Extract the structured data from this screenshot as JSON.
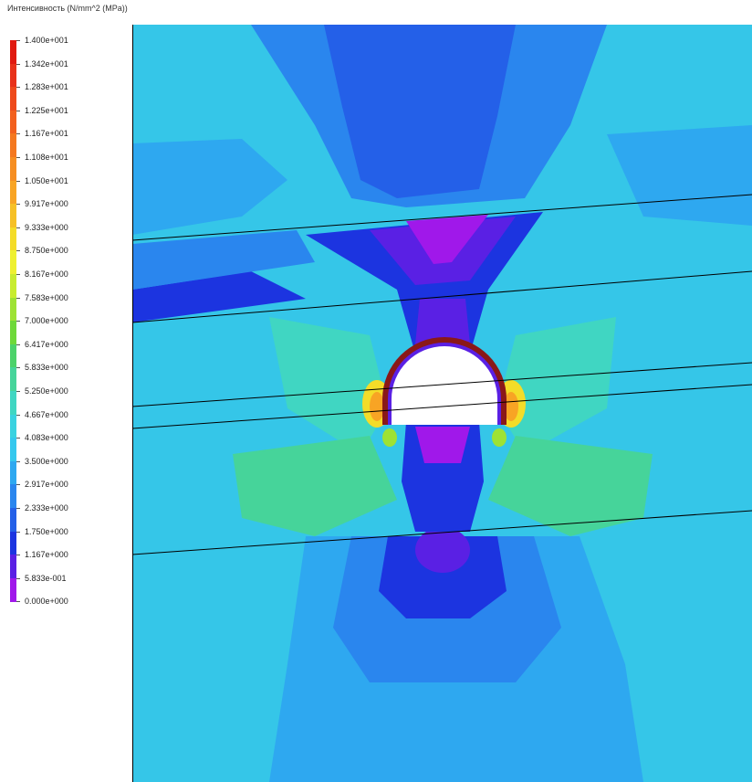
{
  "legend": {
    "title": "Интенсивность (N/mm^2 (MPa))",
    "entries": [
      {
        "label": "1.400e+001",
        "color": "#e01a10"
      },
      {
        "label": "1.342e+001",
        "color": "#e8321a"
      },
      {
        "label": "1.283e+001",
        "color": "#ee4a1c"
      },
      {
        "label": "1.225e+001",
        "color": "#f2601e"
      },
      {
        "label": "1.167e+001",
        "color": "#f47820"
      },
      {
        "label": "1.108e+001",
        "color": "#f68e22"
      },
      {
        "label": "1.050e+001",
        "color": "#f8a424"
      },
      {
        "label": "9.917e+000",
        "color": "#f6c026"
      },
      {
        "label": "9.333e+000",
        "color": "#f4dc28"
      },
      {
        "label": "8.750e+000",
        "color": "#eef030"
      },
      {
        "label": "8.167e+000",
        "color": "#c8ec30"
      },
      {
        "label": "7.583e+000",
        "color": "#9ee234"
      },
      {
        "label": "7.000e+000",
        "color": "#6ed83a"
      },
      {
        "label": "6.417e+000",
        "color": "#4cd26a"
      },
      {
        "label": "5.833e+000",
        "color": "#46d49a"
      },
      {
        "label": "5.250e+000",
        "color": "#40d6c2"
      },
      {
        "label": "4.667e+000",
        "color": "#3ad2e0"
      },
      {
        "label": "4.083e+000",
        "color": "#34c8ee"
      },
      {
        "label": "3.500e+000",
        "color": "#2ea8f0"
      },
      {
        "label": "2.917e+000",
        "color": "#2a86ee"
      },
      {
        "label": "2.333e+000",
        "color": "#2460e8"
      },
      {
        "label": "1.750e+000",
        "color": "#1c34e0"
      },
      {
        "label": "1.167e+000",
        "color": "#5a20e4"
      },
      {
        "label": "5.833e-001",
        "color": "#a018ea"
      },
      {
        "label": "0.000e+000",
        "color": "#ee10ee"
      }
    ]
  },
  "colors": {
    "background_field": "#35c6e8",
    "boundary_lines": "#000000",
    "opening_fill": "#ffffff"
  }
}
